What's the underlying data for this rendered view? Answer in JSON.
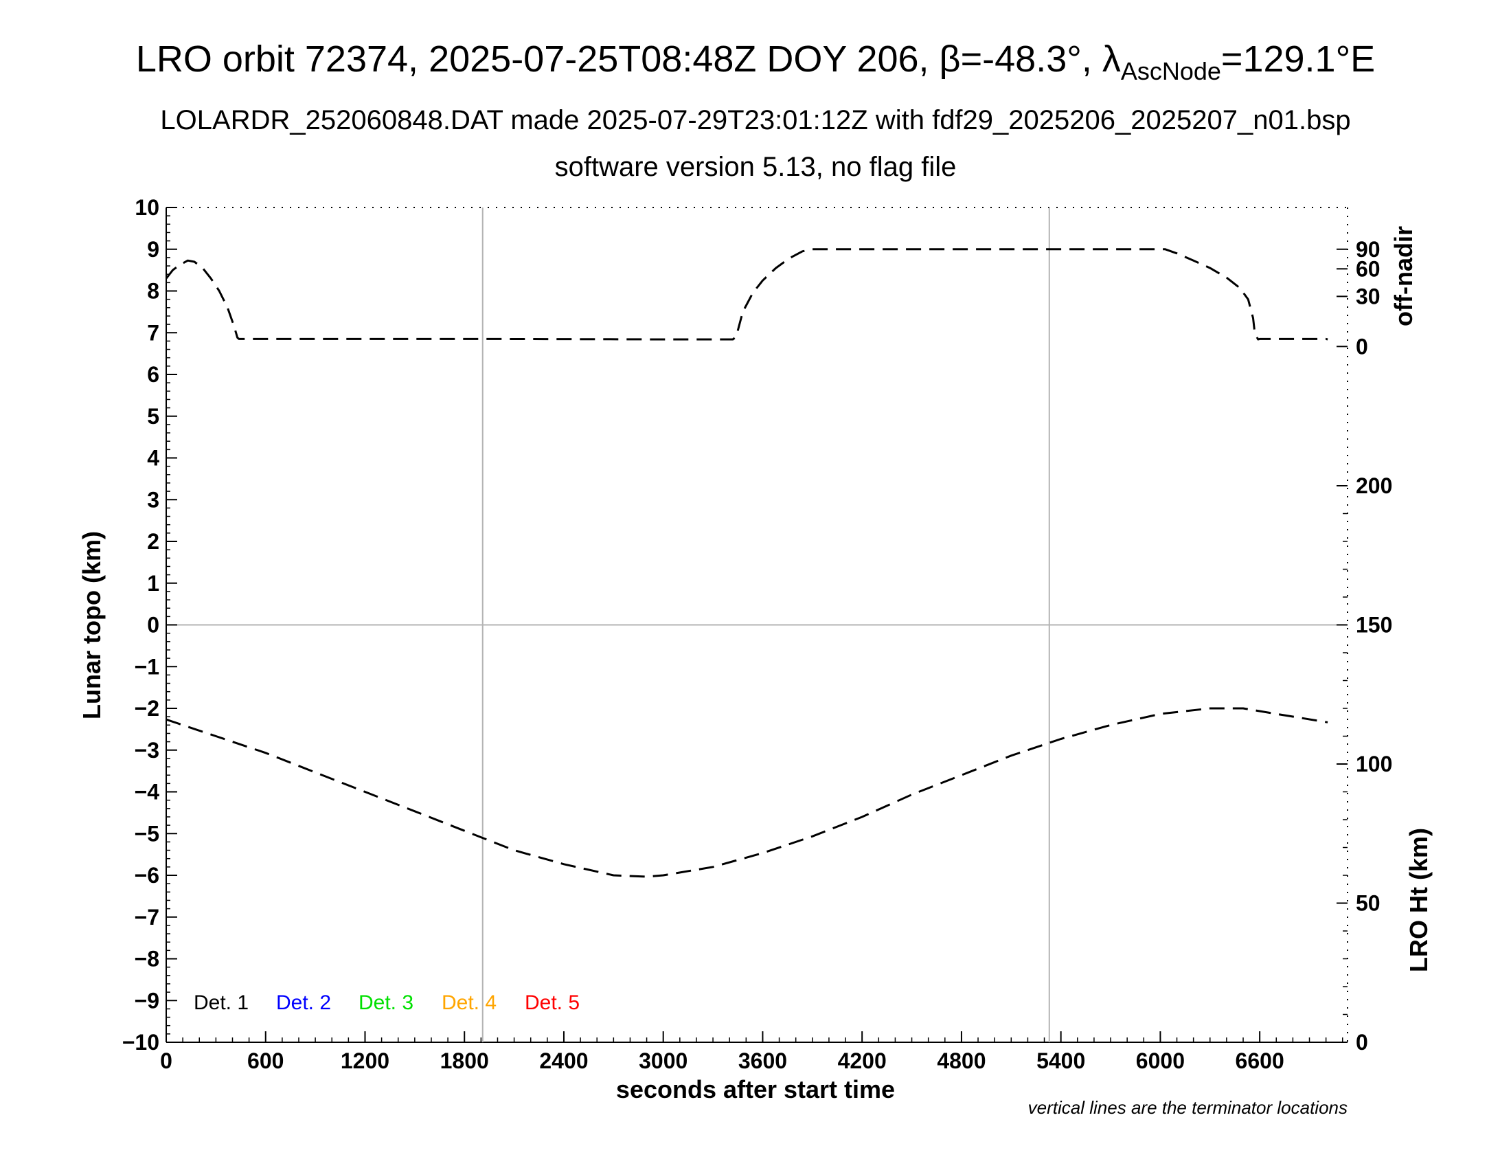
{
  "title": {
    "main_prefix": "LRO orbit 72374, 2025-07-25T08:48Z DOY 206, ",
    "beta_symbol": "β",
    "beta_value": "=-48.3°, ",
    "lambda_symbol": "λ",
    "lambda_sub": "AscNode",
    "lambda_value": "=129.1°E",
    "line2": "LOLARDR_252060848.DAT made 2025-07-29T23:01:12Z with fdf29_2025206_2025207_n01.bsp",
    "line3": "software version 5.13, no flag file"
  },
  "note": "vertical lines are the terminator locations",
  "chart_data": {
    "type": "line",
    "xlabel": "seconds after start time",
    "ylabel_left": "Lunar topo (km)",
    "ylabel_right_top": "off-nadir",
    "ylabel_right_bottom": "LRO Ht (km)",
    "xlim": [
      0,
      7130
    ],
    "ylim_left": [
      -10,
      10
    ],
    "x_ticks": [
      "0",
      "600",
      "1200",
      "1800",
      "2400",
      "3000",
      "3600",
      "4200",
      "4800",
      "5400",
      "6000",
      "6600"
    ],
    "y_ticks_left": [
      "10",
      "9",
      "8",
      "7",
      "6",
      "5",
      "4",
      "3",
      "2",
      "1",
      "0",
      "−1",
      "−2",
      "−3",
      "−4",
      "−5",
      "−6",
      "−7",
      "−8",
      "−9",
      "−10"
    ],
    "right_top_axis": {
      "range_left_units": [
        6.67,
        10
      ],
      "ticks": [
        "0",
        "30",
        "60",
        "90"
      ],
      "tick_left_values": [
        6.67,
        7.87,
        8.53,
        9.0
      ]
    },
    "right_bottom_axis": {
      "ylim": [
        0,
        300
      ],
      "ticks": [
        "0",
        "50",
        "100",
        "150",
        "200"
      ]
    },
    "terminator_x": [
      1910,
      5330
    ],
    "zero_line": 0,
    "grid": false,
    "legend_position": "bottom-left",
    "legend": [
      {
        "label": "Det. 1",
        "color": "#000000"
      },
      {
        "label": "Det. 2",
        "color": "#0000ff"
      },
      {
        "label": "Det. 3",
        "color": "#00e000"
      },
      {
        "label": "Det. 4",
        "color": "#ffa500"
      },
      {
        "label": "Det. 5",
        "color": "#ff0000"
      }
    ],
    "series": [
      {
        "label": "off-nadir",
        "style": "dashed",
        "color": "#000000",
        "x": [
          0,
          40,
          80,
          130,
          170,
          220,
          270,
          320,
          370,
          410,
          430,
          440,
          1000,
          2000,
          3000,
          3420,
          3440,
          3480,
          3540,
          3600,
          3680,
          3760,
          3840,
          3900,
          4500,
          5000,
          5500,
          6030,
          6100,
          6200,
          6300,
          6400,
          6480,
          6530,
          6560,
          6570,
          6590,
          6600,
          7000,
          7010
        ],
        "y": [
          8.3,
          8.5,
          8.62,
          8.73,
          8.7,
          8.55,
          8.3,
          8.0,
          7.6,
          7.15,
          6.88,
          6.85,
          6.85,
          6.85,
          6.84,
          6.84,
          6.9,
          7.5,
          7.95,
          8.25,
          8.55,
          8.78,
          8.95,
          9.0,
          9.0,
          9.0,
          9.0,
          9.0,
          8.9,
          8.73,
          8.55,
          8.32,
          8.07,
          7.8,
          7.35,
          7.0,
          6.84,
          6.85,
          6.85,
          6.84
        ]
      },
      {
        "label": "LRO Ht (km)",
        "style": "dashed",
        "color": "#000000",
        "x": [
          0,
          300,
          600,
          900,
          1200,
          1500,
          1800,
          2100,
          2400,
          2700,
          2900,
          3000,
          3300,
          3600,
          3900,
          4200,
          4500,
          4800,
          5100,
          5400,
          5700,
          6000,
          6300,
          6500,
          6700,
          7010
        ],
        "y": [
          116,
          110,
          104,
          97,
          90,
          83,
          76,
          69,
          64,
          60,
          59.5,
          60,
          63,
          68,
          74,
          81,
          89,
          96,
          103,
          109,
          114,
          118,
          120,
          120,
          118,
          115
        ]
      }
    ]
  }
}
